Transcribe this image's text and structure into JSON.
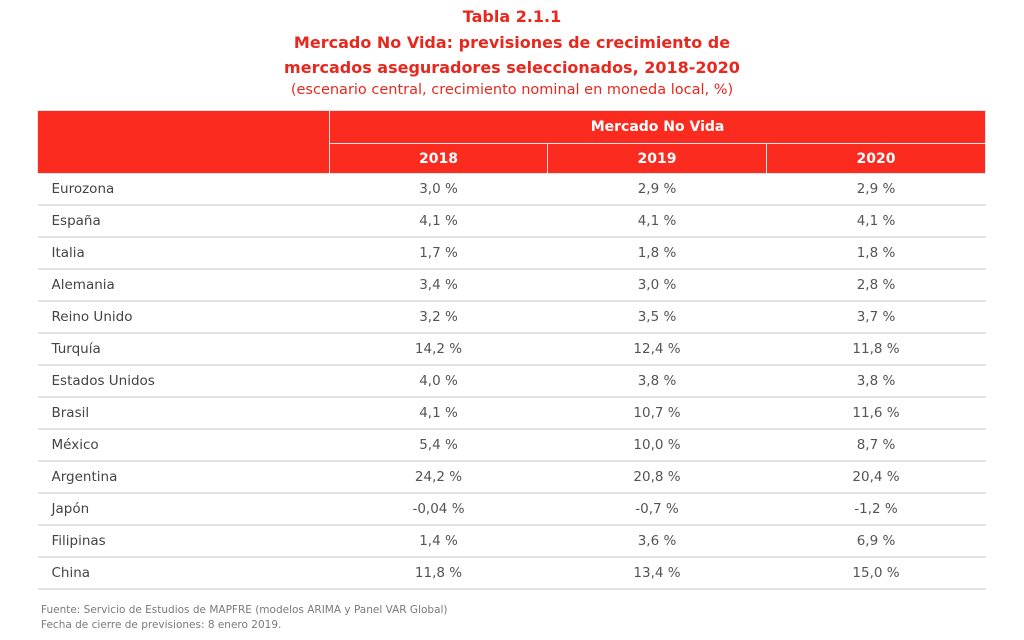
{
  "title": {
    "number": "Tabla 2.1.1",
    "line1": "Mercado No Vida: previsiones de crecimiento de",
    "line2": "mercados aseguradores seleccionados, 2018-2020",
    "subtitle": "(escenario central, crecimiento nominal en moneda local, %)"
  },
  "colors": {
    "accent": "#e8281e",
    "header_bg": "#fc2b20"
  },
  "table": {
    "group_header": "Mercado No Vida",
    "years": [
      "2018",
      "2019",
      "2020"
    ],
    "rows": [
      {
        "country": "Eurozona",
        "values": [
          "3,0 %",
          "2,9 %",
          "2,9 %"
        ]
      },
      {
        "country": "España",
        "values": [
          "4,1 %",
          "4,1 %",
          "4,1 %"
        ]
      },
      {
        "country": "Italia",
        "values": [
          "1,7 %",
          "1,8 %",
          "1,8 %"
        ]
      },
      {
        "country": "Alemania",
        "values": [
          "3,4 %",
          "3,0 %",
          "2,8 %"
        ]
      },
      {
        "country": "Reino Unido",
        "values": [
          "3,2 %",
          "3,5 %",
          "3,7 %"
        ]
      },
      {
        "country": "Turquía",
        "values": [
          "14,2 %",
          "12,4 %",
          "11,8 %"
        ]
      },
      {
        "country": "Estados Unidos",
        "values": [
          "4,0 %",
          "3,8 %",
          "3,8 %"
        ]
      },
      {
        "country": "Brasil",
        "values": [
          "4,1 %",
          "10,7 %",
          "11,6 %"
        ]
      },
      {
        "country": "México",
        "values": [
          "5,4 %",
          "10,0 %",
          "8,7 %"
        ]
      },
      {
        "country": "Argentina",
        "values": [
          "24,2 %",
          "20,8 %",
          "20,4 %"
        ]
      },
      {
        "country": "Japón",
        "values": [
          "-0,04 %",
          "-0,7 %",
          "-1,2 %"
        ]
      },
      {
        "country": "Filipinas",
        "values": [
          "1,4 %",
          "3,6 %",
          "6,9 %"
        ]
      },
      {
        "country": "China",
        "values": [
          "11,8 %",
          "13,4 %",
          "15,0 %"
        ]
      }
    ]
  },
  "footer": {
    "source": "Fuente: Servicio de Estudios de MAPFRE (modelos ARIMA y Panel VAR Global)",
    "closing_date": "Fecha de cierre de previsiones: 8 enero 2019."
  }
}
